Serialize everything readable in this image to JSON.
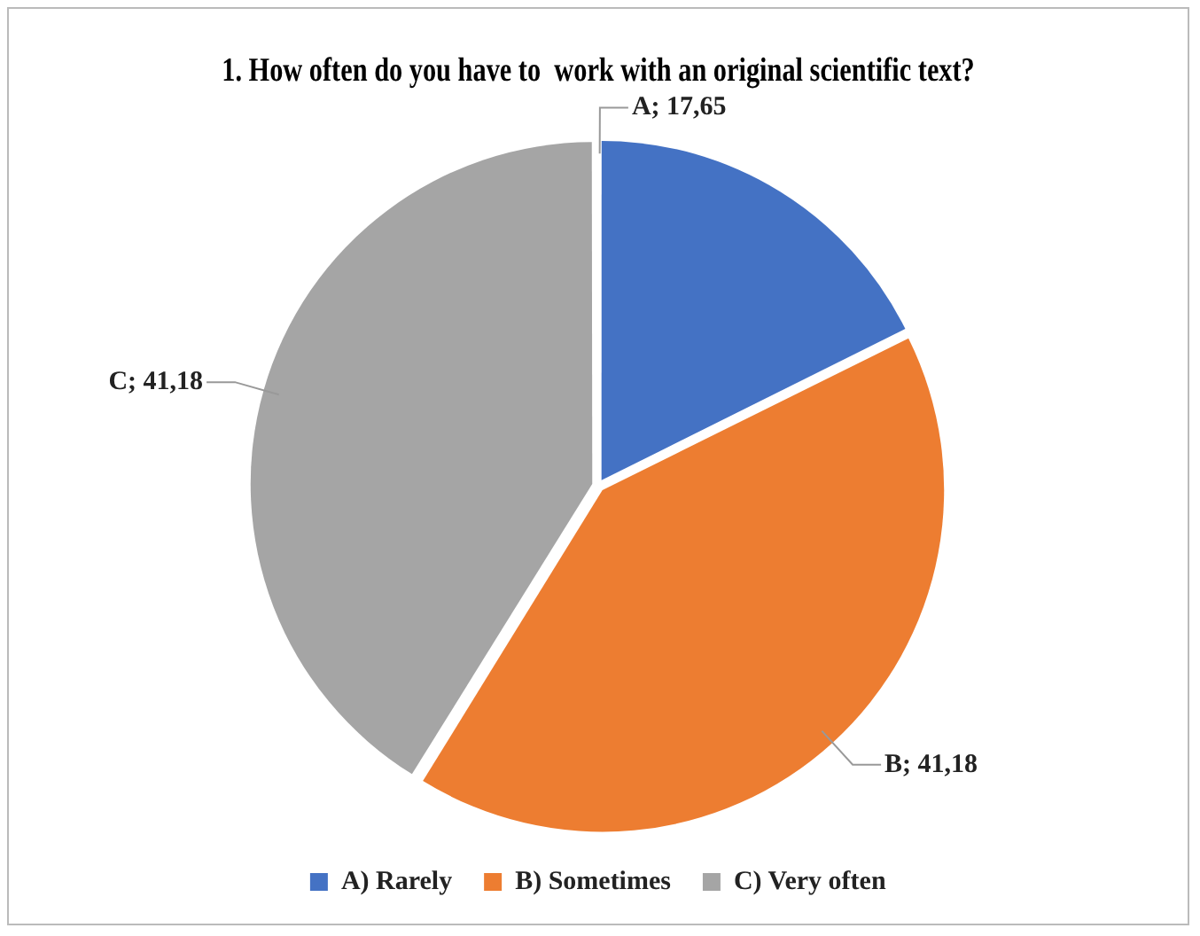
{
  "chart_data": {
    "type": "pie",
    "title": "1. How often do you have to  work with an original scientific text?",
    "categories": [
      "A) Rarely",
      "B) Sometimes",
      "C) Very often"
    ],
    "values": [
      17.65,
      41.18,
      41.18
    ],
    "colors": [
      "#4472c4",
      "#ed7d31",
      "#a5a5a5"
    ],
    "value_labels": [
      "A; 17,65",
      "B; 41,18",
      "C; 41,18"
    ],
    "legend": "bottom"
  }
}
